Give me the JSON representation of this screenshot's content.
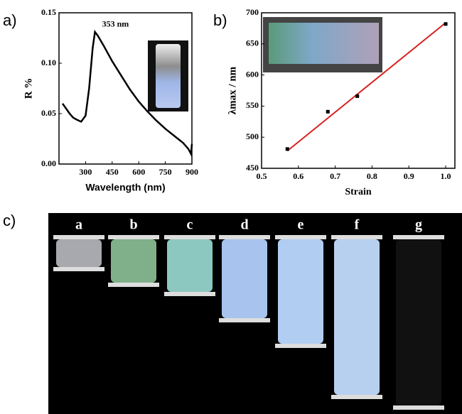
{
  "panel_labels": [
    "a)",
    "b)",
    "c)"
  ],
  "chart_data": [
    {
      "type": "line",
      "xlabel": "Wavelength (nm)",
      "ylabel": "R %",
      "annotation": "353 nm",
      "color": "#000000",
      "x": [
        170,
        190,
        210,
        230,
        250,
        275,
        300,
        320,
        340,
        353,
        370,
        400,
        450,
        500,
        550,
        600,
        650,
        700,
        750,
        800,
        850,
        880,
        895,
        900
      ],
      "values": [
        0.06,
        0.055,
        0.05,
        0.046,
        0.044,
        0.042,
        0.048,
        0.075,
        0.115,
        0.131,
        0.127,
        0.118,
        0.102,
        0.088,
        0.074,
        0.062,
        0.052,
        0.043,
        0.035,
        0.028,
        0.021,
        0.015,
        0.01,
        0.02
      ],
      "xlim": [
        150,
        900
      ],
      "xticks": [
        300,
        450,
        600,
        750,
        900
      ],
      "ylim": [
        0,
        0.15
      ],
      "yticks": [
        {
          "value": 0,
          "label": "0.00"
        },
        0.05,
        {
          "value": 0.1,
          "label": "0.10"
        },
        0.15
      ]
    },
    {
      "type": "scatter",
      "xlabel": "Strain",
      "ylabel": "λmax / nm",
      "color": "#000000",
      "x": [
        0.57,
        0.68,
        0.76,
        1.0
      ],
      "values": [
        481,
        541,
        566,
        682
      ],
      "fit": {
        "color": "#d62020",
        "x": [
          0.57,
          1.0
        ],
        "values": [
          478,
          684
        ]
      },
      "xlim": [
        0.5,
        1.025
      ],
      "xticks": [
        0.5,
        0.6,
        0.7,
        0.8,
        0.9,
        {
          "value": 1,
          "label": "1.0"
        }
      ],
      "ylim": [
        450,
        700
      ],
      "yticks": [
        450,
        500,
        550,
        600,
        650,
        700
      ]
    }
  ],
  "photo_labels": [
    "a",
    "b",
    "c",
    "d",
    "e",
    "f",
    "g"
  ]
}
